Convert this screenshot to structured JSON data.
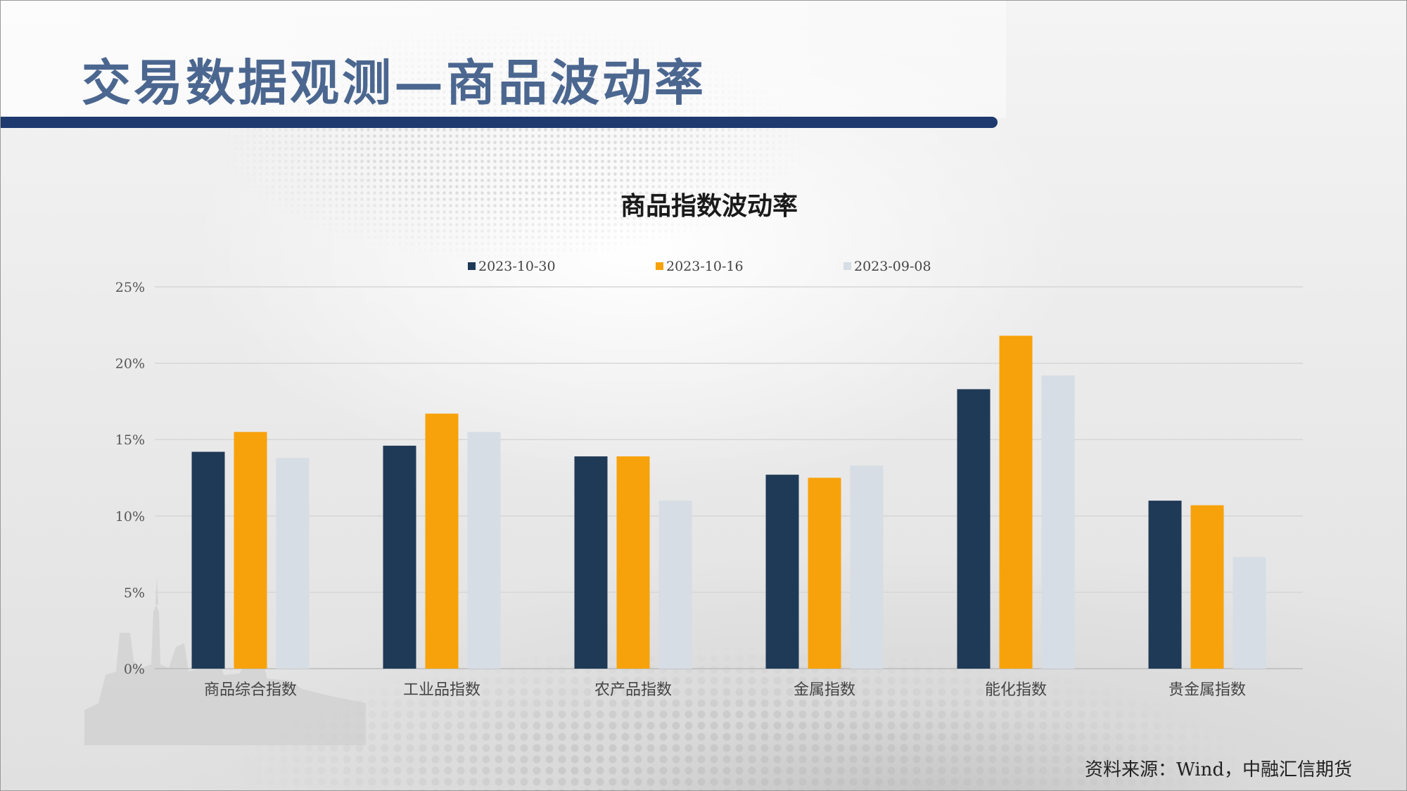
{
  "page": {
    "title": "交易数据观测—商品波动率",
    "source": "资料来源：Wind，中融汇信期货"
  },
  "colors": {
    "title": "#4b6790",
    "rule": "#1e3a6e",
    "series": [
      "#1f3a56",
      "#f7a20a",
      "#d6dde5"
    ]
  },
  "chart_data": {
    "type": "bar",
    "title": "商品指数波动率",
    "xlabel": "",
    "ylabel": "",
    "categories": [
      "商品综合指数",
      "工业品指数",
      "农产品指数",
      "金属指数",
      "能化指数",
      "贵金属指数"
    ],
    "series": [
      {
        "name": "2023-10-30",
        "values": [
          14.2,
          14.6,
          13.9,
          12.7,
          18.3,
          11.0
        ]
      },
      {
        "name": "2023-10-16",
        "values": [
          15.5,
          16.7,
          13.9,
          12.5,
          21.8,
          10.7
        ]
      },
      {
        "name": "2023-09-08",
        "values": [
          13.8,
          15.5,
          11.0,
          13.3,
          19.2,
          7.3
        ]
      }
    ],
    "ylim": [
      0,
      25
    ],
    "yticks": [
      "0%",
      "5%",
      "10%",
      "15%",
      "20%",
      "25%"
    ],
    "grid": true,
    "legend_position": "top"
  }
}
